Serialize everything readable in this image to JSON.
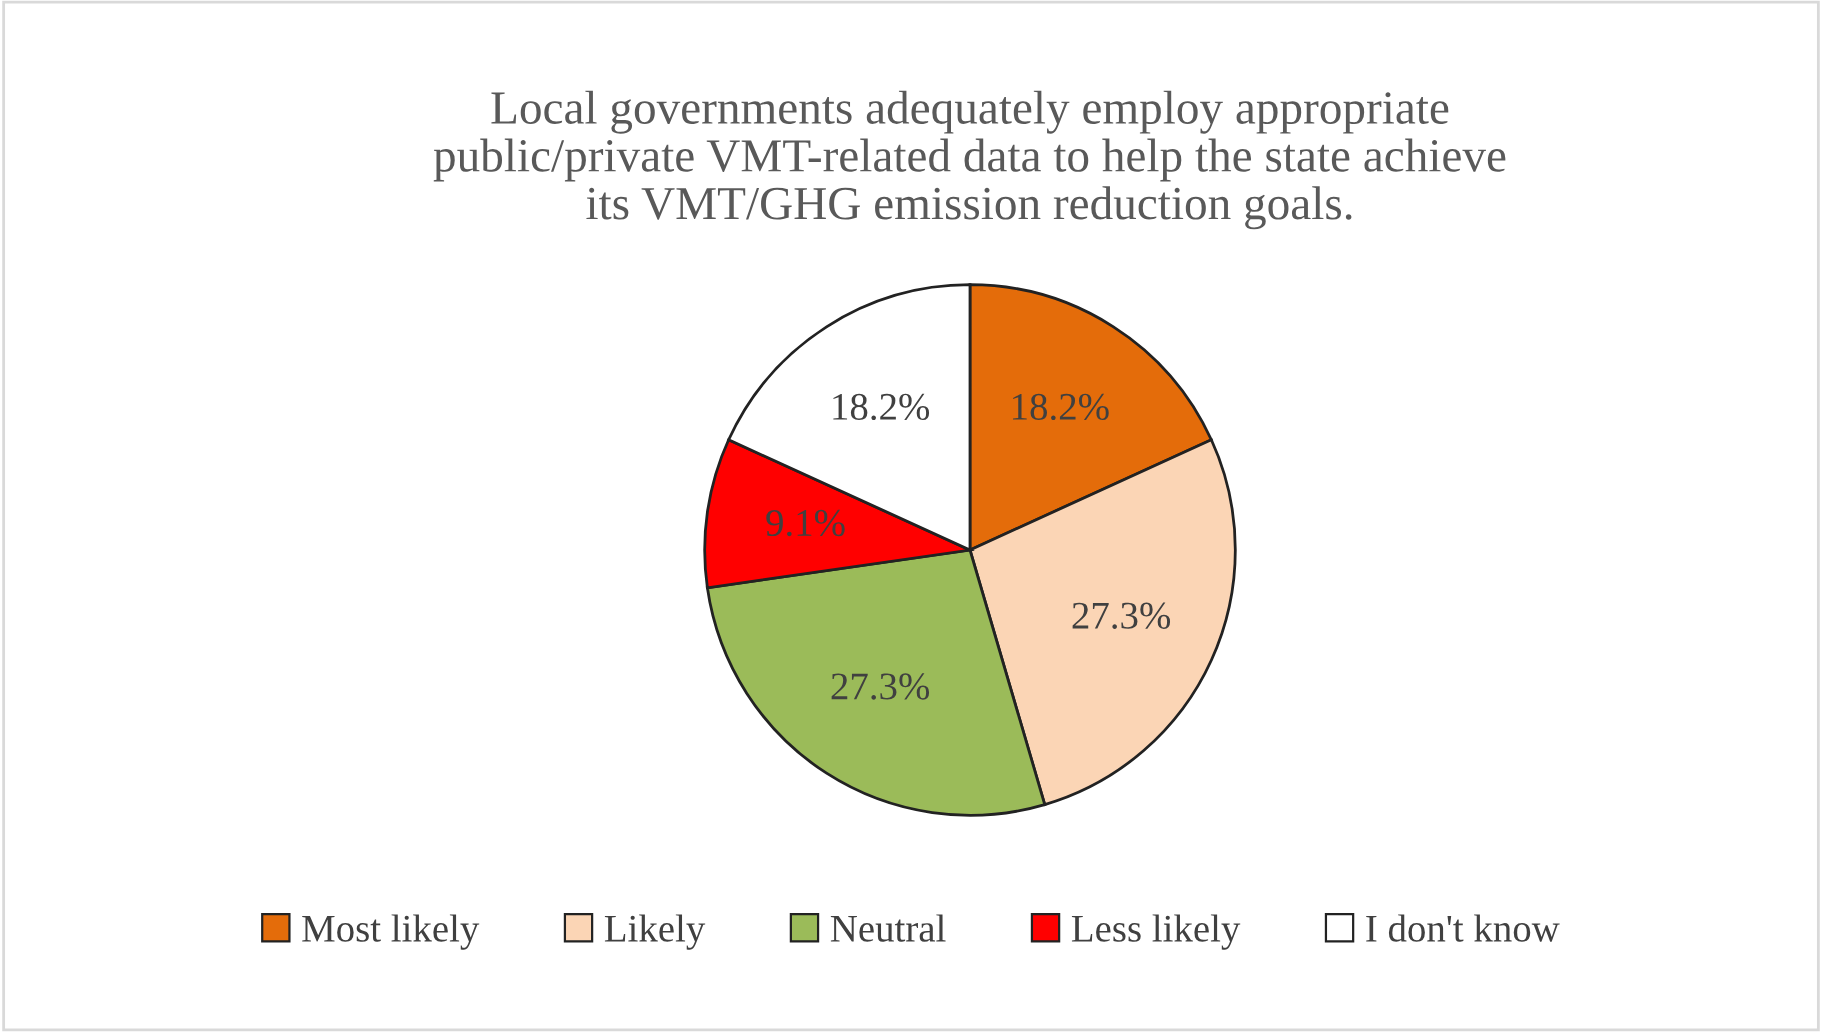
{
  "chart_data": {
    "type": "pie",
    "title": "Local governments adequately employ appropriate\npublic/private VMT-related data to help the state achieve\nits VMT/GHG emission reduction goals.",
    "categories": [
      "Most likely",
      "Likely",
      "Neutral",
      "Less likely",
      "I don't know"
    ],
    "values": [
      18.2,
      27.3,
      27.3,
      9.1,
      18.2
    ],
    "value_labels": [
      "18.2%",
      "27.3%",
      "27.3%",
      "9.1%",
      "18.2%"
    ],
    "colors": [
      "#e46c0a",
      "#fbd5b5",
      "#9bbb59",
      "#ff0000",
      "#ffffff"
    ],
    "legend": "bottom"
  }
}
